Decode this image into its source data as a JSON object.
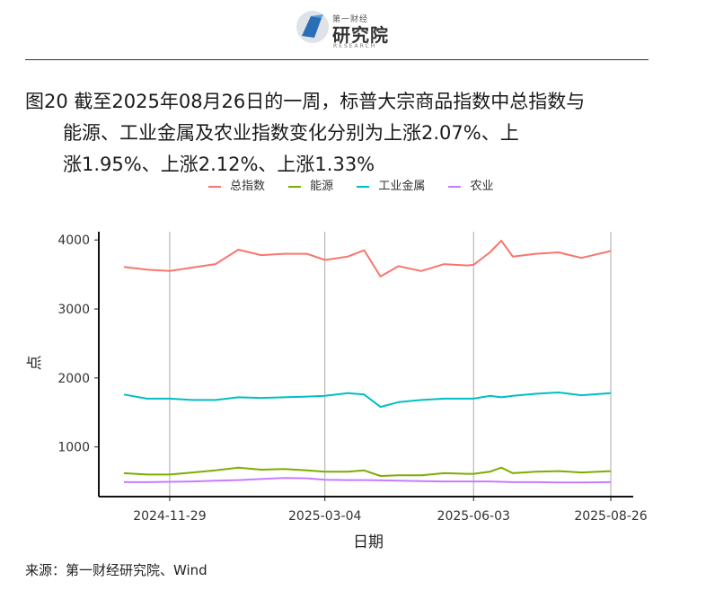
{
  "header": {
    "logo_small": "第一财经",
    "logo_big": "研究院",
    "logo_en": "RESEARCH"
  },
  "figure": {
    "title_line1": "图20  截至2025年08月26日的一周，标普大宗商品指数中总指数与",
    "title_line2": "能源、工业金属及农业指数变化分别为上涨2.07%、上",
    "title_line3": "涨1.95%、上涨2.12%、上涨1.33%"
  },
  "source": "来源：第一财经研究院、Wind",
  "chart_data": {
    "type": "line",
    "xlabel": "日期",
    "ylabel": "点",
    "x_ticks": [
      "2024-11-29",
      "2025-03-04",
      "2025-06-03",
      "2025-08-26"
    ],
    "x_range": [
      "2024-11-01",
      "2025-08-26"
    ],
    "ylim": [
      280,
      4120
    ],
    "y_ticks": [
      1000,
      2000,
      3000,
      4000
    ],
    "grid": "vertical major lines at x ticks",
    "legend_position": "top",
    "dates": [
      "2024-11-01",
      "2024-11-15",
      "2024-11-29",
      "2024-12-13",
      "2024-12-27",
      "2025-01-10",
      "2025-01-24",
      "2025-02-07",
      "2025-02-21",
      "2025-03-04",
      "2025-03-18",
      "2025-03-28",
      "2025-04-07",
      "2025-04-18",
      "2025-05-02",
      "2025-05-16",
      "2025-05-30",
      "2025-06-03",
      "2025-06-13",
      "2025-06-20",
      "2025-06-27",
      "2025-07-11",
      "2025-07-25",
      "2025-08-08",
      "2025-08-26"
    ],
    "series": [
      {
        "name": "总指数",
        "color": "#F8766D",
        "values": [
          3610,
          3570,
          3550,
          3600,
          3650,
          3860,
          3780,
          3800,
          3800,
          3710,
          3760,
          3850,
          3470,
          3620,
          3550,
          3650,
          3630,
          3640,
          3820,
          3990,
          3760,
          3800,
          3820,
          3740,
          3840
        ]
      },
      {
        "name": "能源",
        "color": "#7CAE00",
        "values": [
          620,
          600,
          600,
          630,
          660,
          700,
          670,
          680,
          660,
          640,
          640,
          660,
          580,
          590,
          590,
          620,
          610,
          610,
          640,
          700,
          620,
          640,
          650,
          630,
          650
        ]
      },
      {
        "name": "工业金属",
        "color": "#00BFC4",
        "values": [
          1760,
          1700,
          1700,
          1680,
          1680,
          1720,
          1710,
          1720,
          1730,
          1740,
          1780,
          1760,
          1580,
          1650,
          1680,
          1700,
          1700,
          1700,
          1740,
          1720,
          1740,
          1770,
          1790,
          1750,
          1780
        ]
      },
      {
        "name": "农业",
        "color": "#C77CFF",
        "values": [
          490,
          490,
          495,
          500,
          510,
          520,
          535,
          550,
          545,
          525,
          520,
          520,
          515,
          510,
          505,
          500,
          500,
          500,
          500,
          495,
          490,
          490,
          485,
          485,
          490
        ]
      }
    ]
  }
}
